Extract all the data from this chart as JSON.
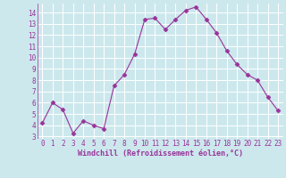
{
  "xlabel": "Windchill (Refroidissement éolien,°C)",
  "x_values": [
    0,
    1,
    2,
    3,
    4,
    5,
    6,
    7,
    8,
    9,
    10,
    11,
    12,
    13,
    14,
    15,
    16,
    17,
    18,
    19,
    20,
    21,
    22,
    23
  ],
  "y_values": [
    4.2,
    6.0,
    5.4,
    3.3,
    4.4,
    4.0,
    3.7,
    7.5,
    8.5,
    10.3,
    13.4,
    13.5,
    12.5,
    13.4,
    14.2,
    14.5,
    13.4,
    12.2,
    10.6,
    9.4,
    8.5,
    8.0,
    6.5,
    5.3
  ],
  "line_color": "#993399",
  "marker": "D",
  "marker_size": 2.5,
  "bg_color": "#cce8ed",
  "grid_color": "#b0d8de",
  "ylim": [
    2.8,
    14.8
  ],
  "xlim": [
    -0.5,
    23.5
  ],
  "yticks": [
    3,
    4,
    5,
    6,
    7,
    8,
    9,
    10,
    11,
    12,
    13,
    14
  ],
  "xticks": [
    0,
    1,
    2,
    3,
    4,
    5,
    6,
    7,
    8,
    9,
    10,
    11,
    12,
    13,
    14,
    15,
    16,
    17,
    18,
    19,
    20,
    21,
    22,
    23
  ],
  "tick_color": "#993399",
  "label_color": "#993399",
  "xlabel_color": "#993399",
  "tick_labelsize": 5.5,
  "xlabel_fontsize": 6.0,
  "xlabel_bold": true
}
